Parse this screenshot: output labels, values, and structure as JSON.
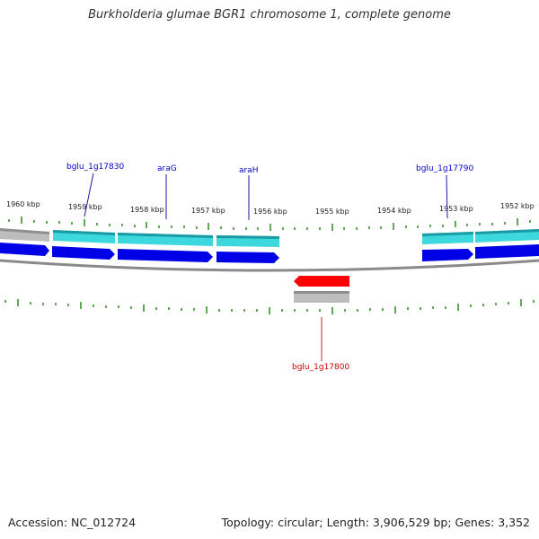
{
  "title": "Burkholderia glumae BGR1 chromosome 1, complete genome",
  "accession": "Accession: NC_012724",
  "stats": "Topology: circular; Length: 3,906,529 bp; Genes: 3,352",
  "colors": {
    "forward_gene": "#0000e6",
    "forward_gene_light": "#29cdd6",
    "reverse_gene": "#ff0000",
    "pseudo_gene": "#b4b4b4",
    "tick": "#2e8b20",
    "backbone": "#888888",
    "label_forward": "#0000cc",
    "label_reverse": "#cc0000"
  },
  "kbp_labels": [
    "1960 kbp",
    "1959 kbp",
    "1958 kbp",
    "1957 kbp",
    "1956 kbp",
    "1955 kbp",
    "1954 kbp",
    "1953 kbp",
    "1952 kbp"
  ],
  "gene_labels": [
    {
      "name": "bglu_1g17830",
      "strand": "forward"
    },
    {
      "name": "araG",
      "strand": "forward"
    },
    {
      "name": "araH",
      "strand": "forward"
    },
    {
      "name": "bglu_1g17790",
      "strand": "forward"
    },
    {
      "name": "bglu_1g17800",
      "strand": "reverse"
    }
  ]
}
